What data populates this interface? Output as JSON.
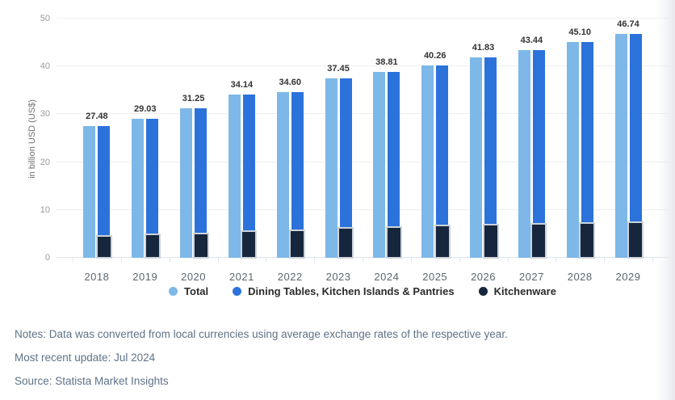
{
  "chart_data": {
    "type": "bar",
    "title": "",
    "categories": [
      "2018",
      "2019",
      "2020",
      "2021",
      "2022",
      "2023",
      "2024",
      "2025",
      "2026",
      "2027",
      "2028",
      "2029"
    ],
    "series": [
      {
        "name": "Total",
        "color": "#7DB8E8",
        "values": [
          27.48,
          29.03,
          31.25,
          34.14,
          34.6,
          37.45,
          38.81,
          40.26,
          41.83,
          43.44,
          45.1,
          46.74
        ]
      },
      {
        "name": "Dining Tables, Kitchen Islands & Pantries",
        "color": "#2C72DB",
        "values": [
          22.88,
          24.13,
          26.15,
          28.64,
          28.8,
          31.25,
          32.41,
          33.56,
          34.93,
          36.34,
          37.8,
          39.24
        ]
      },
      {
        "name": "Kitchenware",
        "color": "#16263C",
        "values": [
          4.6,
          4.9,
          5.1,
          5.5,
          5.8,
          6.2,
          6.4,
          6.7,
          6.9,
          7.1,
          7.3,
          7.5
        ]
      }
    ],
    "value_labels": [
      "27.48",
      "29.03",
      "31.25",
      "34.14",
      "34.60",
      "37.45",
      "38.81",
      "40.26",
      "41.83",
      "43.44",
      "45.10",
      "46.74"
    ],
    "xlabel": "",
    "ylabel": "in billion USD (US$)",
    "ylim": [
      0,
      50
    ],
    "y_ticks": [
      0,
      10,
      20,
      30,
      40,
      50
    ],
    "grid": true,
    "legend_position": "bottom",
    "layout_hint": "pairs per year: left column = Total; right column = Dining Tables stacked on Kitchenware"
  },
  "legend": [
    {
      "label": "Total",
      "color": "#7DB8E8"
    },
    {
      "label": "Dining Tables, Kitchen Islands & Pantries",
      "color": "#2C72DB"
    },
    {
      "label": "Kitchenware",
      "color": "#16263C"
    }
  ],
  "notes": {
    "notes_line": "Notes: Data was converted from local currencies using average exchange rates of the respective year.",
    "update_line": "Most recent update: Jul 2024",
    "source_line": "Source: Statista Market Insights"
  },
  "colors": {
    "total": "#7DB8E8",
    "dining": "#2C72DB",
    "kitchenware": "#16263C",
    "grid_line": "#EFEFEF",
    "axis_line": "#DFE3EE",
    "value_label": "#333333",
    "y_tick_label": "#9A9A9A",
    "x_tick_label": "#5B6570",
    "legend_text": "#2B2B2B",
    "notes_text": "#5F7287"
  }
}
